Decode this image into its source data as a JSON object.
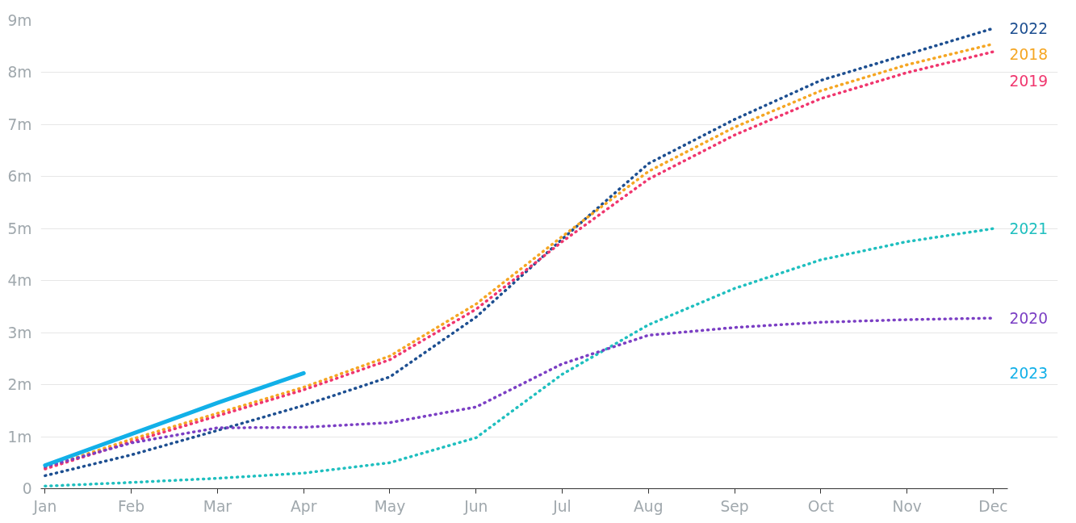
{
  "chart_data": {
    "type": "line",
    "categories": [
      "Jan",
      "Feb",
      "Mar",
      "Apr",
      "May",
      "Jun",
      "Jul",
      "Aug",
      "Sep",
      "Oct",
      "Nov",
      "Dec"
    ],
    "ylim": [
      0,
      9
    ],
    "yticks": [
      0,
      {
        "value": 1,
        "label": "1m"
      },
      {
        "value": 2,
        "label": "2m"
      },
      {
        "value": 3,
        "label": "3m"
      },
      {
        "value": 4,
        "label": "4m"
      },
      {
        "value": 5,
        "label": "5m"
      },
      {
        "value": 6,
        "label": "6m"
      },
      {
        "value": 7,
        "label": "7m"
      },
      {
        "value": 8,
        "label": "8m"
      },
      {
        "value": 9,
        "label": "9m"
      }
    ],
    "grid": "y",
    "legend": false,
    "marker": "none",
    "series": [
      {
        "name": "2022",
        "color": "#1d4f91",
        "line_style": "dotted",
        "values": [
          0.25,
          0.65,
          1.12,
          1.6,
          2.15,
          3.3,
          4.8,
          6.25,
          7.1,
          7.85,
          8.35,
          8.85
        ]
      },
      {
        "name": "2018",
        "color": "#f5a623",
        "line_style": "dotted",
        "values": [
          0.4,
          0.95,
          1.45,
          1.95,
          2.55,
          3.55,
          4.85,
          6.1,
          6.95,
          7.65,
          8.15,
          8.55
        ]
      },
      {
        "name": "2019",
        "color": "#f0366e",
        "line_style": "dotted",
        "values": [
          0.38,
          0.9,
          1.4,
          1.9,
          2.48,
          3.45,
          4.75,
          5.95,
          6.8,
          7.5,
          8.0,
          8.4
        ]
      },
      {
        "name": "2021",
        "color": "#1fbfbf",
        "line_style": "dotted",
        "values": [
          0.05,
          0.12,
          0.2,
          0.3,
          0.5,
          0.98,
          2.2,
          3.15,
          3.85,
          4.4,
          4.75,
          5.0
        ]
      },
      {
        "name": "2020",
        "color": "#7b3fc4",
        "line_style": "dotted",
        "values": [
          0.42,
          0.88,
          1.17,
          1.18,
          1.27,
          1.57,
          2.4,
          2.95,
          3.1,
          3.2,
          3.25,
          3.28
        ]
      },
      {
        "name": "2023",
        "color": "#12b0e8",
        "line_style": "solid",
        "values": [
          0.45,
          1.05,
          1.65,
          2.22,
          null,
          null,
          null,
          null,
          null,
          null,
          null,
          null
        ]
      }
    ]
  }
}
